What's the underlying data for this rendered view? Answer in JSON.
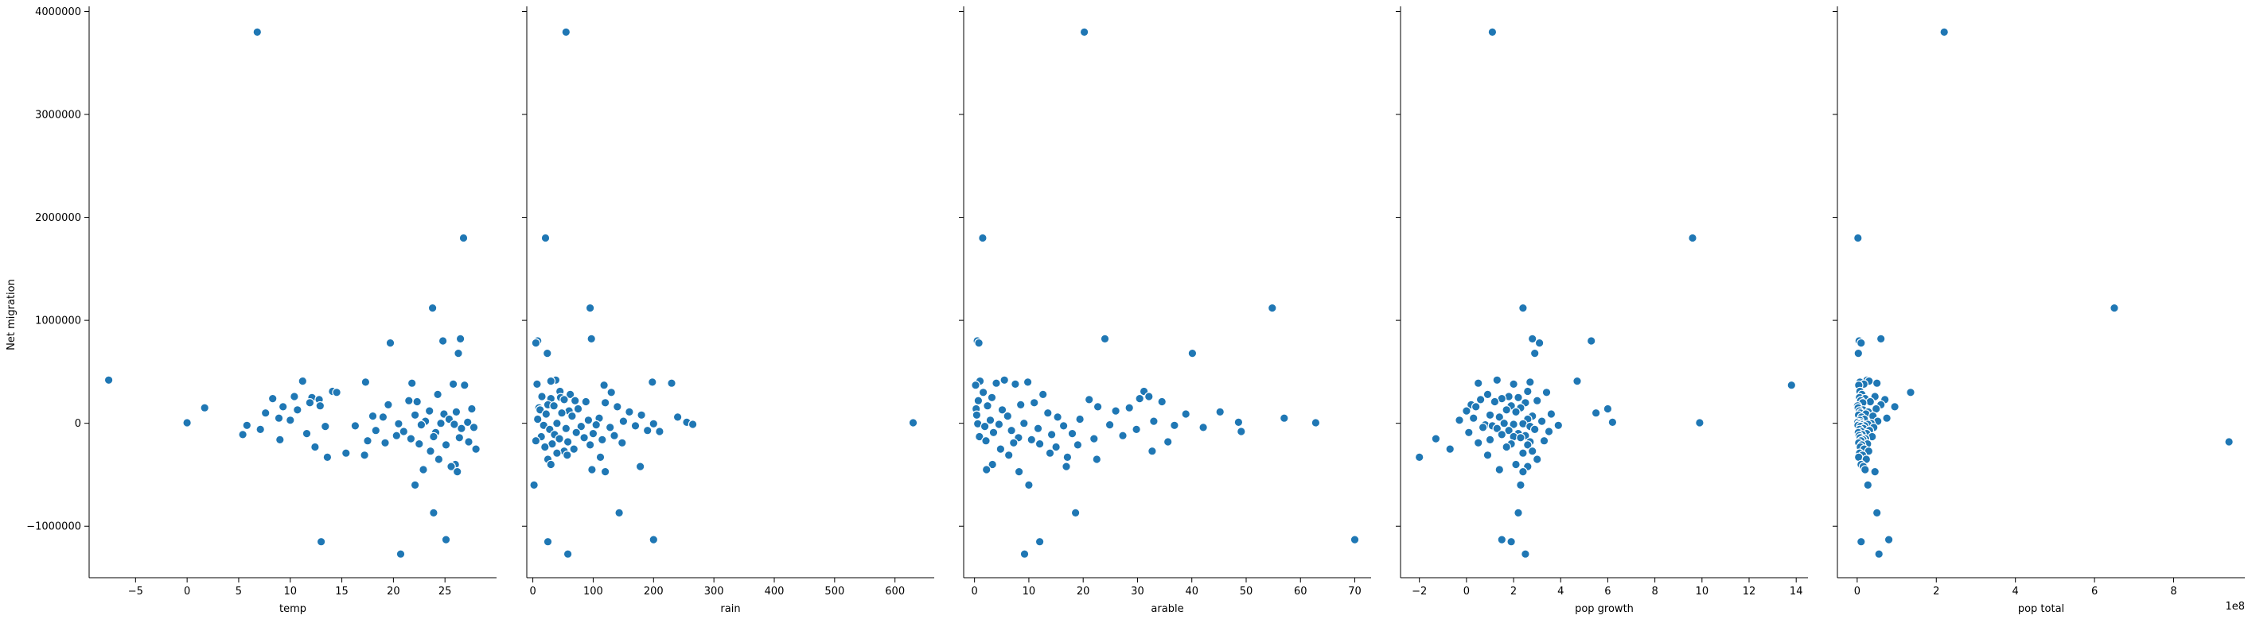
{
  "chart_data": {
    "type": "scatter",
    "ylabel": "Net migration",
    "ylim": [
      -1500000,
      4050000
    ],
    "yticks": [
      -1000000,
      0,
      1000000,
      2000000,
      3000000,
      4000000
    ],
    "ytick_labels": [
      "−1000000",
      "0",
      "1000000",
      "2000000",
      "3000000",
      "4000000"
    ],
    "marker_color": "#1f77b4",
    "marker_edge": "#ffffff",
    "grid": false,
    "y_values": [
      3800000,
      1800000,
      1120000,
      820000,
      800000,
      780000,
      680000,
      420000,
      410000,
      400000,
      390000,
      380000,
      370000,
      310000,
      300000,
      280000,
      260000,
      250000,
      240000,
      230000,
      220000,
      210000,
      200000,
      180000,
      170000,
      160000,
      150000,
      140000,
      130000,
      120000,
      110000,
      100000,
      90000,
      80000,
      70000,
      60000,
      50000,
      40000,
      30000,
      20000,
      10000,
      5000,
      0,
      -5000,
      -10000,
      -15000,
      -20000,
      -25000,
      -30000,
      -40000,
      -50000,
      -60000,
      -70000,
      -80000,
      -90000,
      -100000,
      -110000,
      -120000,
      -130000,
      -140000,
      -150000,
      -160000,
      -170000,
      -180000,
      -190000,
      -200000,
      -210000,
      -230000,
      -250000,
      -270000,
      -290000,
      -310000,
      -330000,
      -350000,
      -400000,
      -420000,
      -450000,
      -470000,
      -600000,
      -870000,
      -1130000,
      -1150000,
      -1270000
    ],
    "panels": [
      {
        "xlabel": "temp",
        "xlim": [
          -9.5,
          30
        ],
        "xticks": [
          -5,
          0,
          5,
          10,
          15,
          20,
          25
        ],
        "xtick_labels": [
          "−5",
          "0",
          "5",
          "10",
          "15",
          "20",
          "25"
        ],
        "offset": "",
        "x_values": [
          6.8,
          26.8,
          23.8,
          26.5,
          24.8,
          19.7,
          26.3,
          -7.6,
          11.2,
          17.3,
          21.8,
          25.8,
          26.9,
          14.1,
          14.5,
          24.3,
          10.4,
          12.1,
          8.3,
          12.8,
          21.5,
          22.3,
          11.9,
          19.5,
          12.9,
          9.3,
          1.7,
          27.6,
          10.7,
          23.5,
          26.1,
          7.6,
          24.9,
          22.1,
          18.0,
          19.0,
          8.9,
          25.4,
          10.0,
          23.1,
          27.2,
          0.0,
          24.6,
          20.5,
          25.9,
          22.7,
          5.8,
          16.3,
          13.4,
          27.8,
          26.6,
          7.1,
          18.3,
          21.0,
          24.1,
          11.6,
          5.4,
          20.3,
          23.9,
          26.4,
          21.7,
          9.0,
          17.5,
          27.3,
          19.2,
          22.5,
          25.1,
          12.4,
          28.0,
          23.6,
          15.4,
          17.2,
          13.6,
          24.4,
          26.0,
          25.6,
          22.9,
          26.2,
          22.1,
          23.9,
          25.1,
          13.0,
          20.7
        ]
      },
      {
        "xlabel": "rain",
        "xlim": [
          -10,
          665
        ],
        "xticks": [
          0,
          100,
          200,
          300,
          400,
          500,
          600
        ],
        "xtick_labels": [
          "0",
          "100",
          "200",
          "300",
          "400",
          "500",
          "600"
        ],
        "offset": "",
        "x_values": [
          55,
          21,
          95,
          97,
          8,
          5,
          24,
          38,
          30,
          198,
          230,
          7,
          118,
          45,
          130,
          62,
          15,
          46,
          30,
          52,
          70,
          88,
          120,
          25,
          35,
          140,
          10,
          75,
          12,
          60,
          160,
          48,
          22,
          180,
          65,
          240,
          110,
          8,
          92,
          150,
          255,
          630,
          40,
          200,
          265,
          105,
          18,
          170,
          80,
          128,
          55,
          28,
          190,
          210,
          72,
          100,
          36,
          135,
          14,
          85,
          44,
          115,
          5,
          58,
          148,
          32,
          95,
          20,
          68,
          52,
          40,
          57,
          112,
          25,
          30,
          178,
          98,
          120,
          2,
          143,
          200,
          25,
          58
        ]
      },
      {
        "xlabel": "arable",
        "xlim": [
          -2,
          73
        ],
        "xticks": [
          0,
          10,
          20,
          30,
          40,
          50,
          60,
          70
        ],
        "xtick_labels": [
          "0",
          "10",
          "20",
          "30",
          "40",
          "50",
          "60",
          "70"
        ],
        "offset": "",
        "x_values": [
          20.2,
          1.5,
          54.8,
          24.0,
          0.5,
          0.8,
          40.1,
          5.5,
          1.0,
          9.8,
          4.0,
          7.5,
          0.2,
          31.2,
          1.6,
          12.6,
          32.1,
          3.2,
          30.4,
          21.1,
          0.7,
          34.5,
          11.0,
          8.5,
          2.4,
          22.7,
          28.5,
          0.3,
          5.1,
          26.0,
          45.2,
          13.5,
          38.9,
          0.4,
          6.1,
          15.3,
          57.0,
          19.4,
          2.9,
          33.0,
          48.6,
          62.8,
          9.1,
          0.6,
          4.5,
          24.9,
          36.8,
          16.4,
          1.9,
          42.1,
          11.7,
          29.8,
          6.8,
          49.1,
          3.5,
          18.0,
          14.2,
          27.3,
          0.9,
          8.1,
          22.0,
          10.5,
          2.1,
          35.6,
          7.2,
          12.0,
          19.0,
          15.0,
          4.8,
          32.7,
          13.9,
          6.3,
          17.1,
          22.5,
          3.3,
          16.9,
          2.2,
          8.2,
          10.0,
          18.6,
          70.0,
          12.0,
          9.2
        ]
      },
      {
        "xlabel": "pop growth",
        "xlim": [
          -2.8,
          14.5
        ],
        "xticks": [
          -2,
          0,
          2,
          4,
          6,
          8,
          10,
          12,
          14
        ],
        "xtick_labels": [
          "−2",
          "0",
          "2",
          "4",
          "6",
          "8",
          "10",
          "12",
          "14"
        ],
        "offset": "",
        "x_values": [
          1.1,
          9.6,
          2.4,
          2.8,
          5.3,
          3.1,
          2.9,
          1.3,
          4.7,
          2.7,
          0.5,
          2.0,
          13.8,
          2.6,
          3.4,
          0.9,
          1.8,
          2.2,
          1.5,
          0.6,
          3.0,
          1.2,
          2.5,
          0.2,
          1.9,
          0.4,
          2.3,
          6.0,
          1.7,
          0.0,
          2.1,
          5.5,
          3.6,
          1.0,
          2.8,
          1.4,
          0.3,
          2.6,
          -0.3,
          3.2,
          6.2,
          9.9,
          1.6,
          2.4,
          2.0,
          0.8,
          3.9,
          1.1,
          2.7,
          0.7,
          1.3,
          2.9,
          1.8,
          3.5,
          0.1,
          2.2,
          1.5,
          2.5,
          2.0,
          2.3,
          -1.3,
          1.0,
          3.3,
          2.7,
          0.5,
          1.9,
          2.6,
          1.7,
          -0.7,
          2.8,
          2.4,
          0.9,
          -2.0,
          3.0,
          2.1,
          2.6,
          1.4,
          2.4,
          2.3,
          2.2,
          1.5,
          1.9,
          2.5
        ]
      },
      {
        "xlabel": "pop total",
        "xlim": [
          -50000000.0,
          980000000.0
        ],
        "xticks": [
          0,
          200000000,
          400000000,
          600000000,
          800000000
        ],
        "xtick_labels": [
          "0",
          "2",
          "4",
          "6",
          "8"
        ],
        "offset": "1e8",
        "x_values": [
          220000000,
          2000000,
          650000000,
          60000000,
          5000000,
          10000000,
          3000000,
          25000000,
          30000000,
          7000000,
          50000000,
          17000000,
          4000000,
          7000000,
          135000000,
          12000000,
          45000000,
          6000000,
          20000000,
          70000000,
          9000000,
          33000000,
          14000000,
          60000000,
          1000000,
          95000000,
          2500000,
          48000000,
          15000000,
          5500000,
          28000000,
          8000000,
          22000000,
          3500000,
          40000000,
          11000000,
          75000000,
          18000000,
          6500000,
          52000000,
          1500000,
          9000000,
          35000000,
          4500000,
          27000000,
          13000000,
          2200000,
          19000000,
          8500000,
          42000000,
          16000000,
          6000000,
          31000000,
          10500000,
          3000000,
          24000000,
          12500000,
          5000000,
          38000000,
          7500000,
          21000000,
          14500000,
          9500000,
          940000000,
          4000000,
          26000000,
          11500000,
          8000000,
          17500000,
          29000000,
          6200000,
          13500000,
          3700000,
          23000000,
          10000000,
          15500000,
          20000000,
          45000000,
          27000000,
          50000000,
          80000000,
          10000000,
          55000000
        ]
      }
    ]
  }
}
